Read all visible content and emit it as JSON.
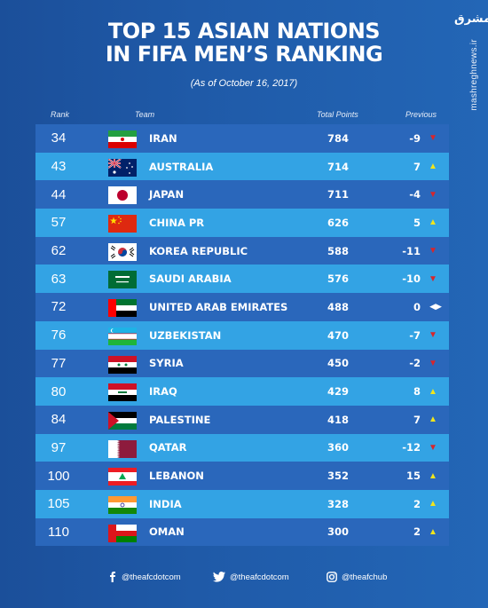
{
  "brand": {
    "logo_text": "مشرق",
    "url": "mashreghnews.ir"
  },
  "title_line1": "TOP 15 ASIAN NATIONS",
  "title_line2": "IN FIFA MEN’S  RANKING",
  "subtitle": "(As of October 16, 2017)",
  "headers": {
    "rank": "Rank",
    "team": "Team",
    "points": "Total Points",
    "previous": "Previous"
  },
  "rows": [
    {
      "rank": "34",
      "team": "IRAN",
      "points": "784",
      "previous": "-9",
      "trend": "down",
      "flag": "iran"
    },
    {
      "rank": "43",
      "team": "AUSTRALIA",
      "points": "714",
      "previous": "7",
      "trend": "up",
      "flag": "australia"
    },
    {
      "rank": "44",
      "team": "JAPAN",
      "points": "711",
      "previous": "-4",
      "trend": "down",
      "flag": "japan"
    },
    {
      "rank": "57",
      "team": "CHINA PR",
      "points": "626",
      "previous": "5",
      "trend": "up",
      "flag": "china"
    },
    {
      "rank": "62",
      "team": "KOREA REPUBLIC",
      "points": "588",
      "previous": "-11",
      "trend": "down",
      "flag": "korea"
    },
    {
      "rank": "63",
      "team": "SAUDI ARABIA",
      "points": "576",
      "previous": "-10",
      "trend": "down",
      "flag": "saudi"
    },
    {
      "rank": "72",
      "team": "UNITED ARAB EMIRATES",
      "points": "488",
      "previous": "0",
      "trend": "same",
      "flag": "uae"
    },
    {
      "rank": "76",
      "team": "UZBEKISTAN",
      "points": "470",
      "previous": "-7",
      "trend": "down",
      "flag": "uzbekistan"
    },
    {
      "rank": "77",
      "team": "SYRIA",
      "points": "450",
      "previous": "-2",
      "trend": "down",
      "flag": "syria"
    },
    {
      "rank": "80",
      "team": "IRAQ",
      "points": "429",
      "previous": "8",
      "trend": "up",
      "flag": "iraq"
    },
    {
      "rank": "84",
      "team": "PALESTINE",
      "points": "418",
      "previous": "7",
      "trend": "up",
      "flag": "palestine"
    },
    {
      "rank": "97",
      "team": "QATAR",
      "points": "360",
      "previous": "-12",
      "trend": "down",
      "flag": "qatar"
    },
    {
      "rank": "100",
      "team": "LEBANON",
      "points": "352",
      "previous": "15",
      "trend": "up",
      "flag": "lebanon"
    },
    {
      "rank": "105",
      "team": "INDIA",
      "points": "328",
      "previous": "2",
      "trend": "up",
      "flag": "india"
    },
    {
      "rank": "110",
      "team": "OMAN",
      "points": "300",
      "previous": "2",
      "trend": "up",
      "flag": "oman"
    }
  ],
  "footer": {
    "facebook": "@theafcdotcom",
    "twitter": "@theafcdotcom",
    "instagram": "@theafchub"
  },
  "colors": {
    "row_dark": "#2a67bb",
    "row_light": "#33a3e4",
    "down": "#d8252b",
    "up": "#f1e51c"
  }
}
